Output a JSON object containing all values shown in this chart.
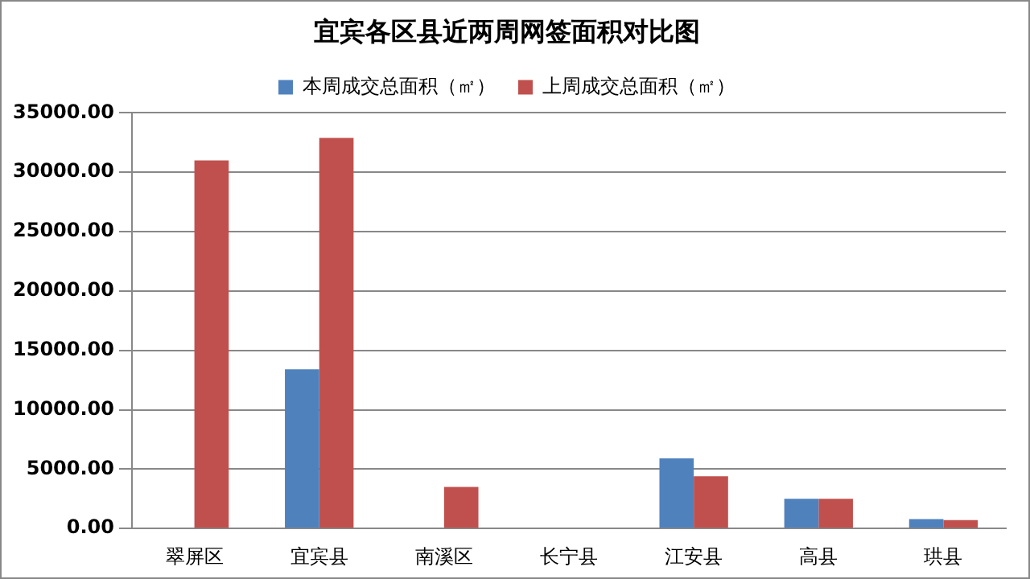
{
  "chart_data": {
    "type": "bar",
    "title": "宜宾各区县近两周网签面积对比图",
    "categories": [
      "翠屏区",
      "宜宾县",
      "南溪区",
      "长宁县",
      "江安县",
      "高县",
      "珙县"
    ],
    "series": [
      {
        "name": "本周成交总面积（㎡）",
        "color": "#4f81bd",
        "values": [
          0,
          13400,
          0,
          0,
          5900,
          2500,
          800
        ]
      },
      {
        "name": "上周成交总面积（㎡）",
        "color": "#c0504d",
        "values": [
          31000,
          32900,
          3500,
          0,
          4400,
          2500,
          700
        ]
      }
    ],
    "ylim": [
      0,
      35000
    ],
    "yticks": [
      {
        "value": 0,
        "label": "0.00"
      },
      {
        "value": 5000,
        "label": "5000.00"
      },
      {
        "value": 10000,
        "label": "10000.00"
      },
      {
        "value": 15000,
        "label": "15000.00"
      },
      {
        "value": 20000,
        "label": "20000.00"
      },
      {
        "value": 25000,
        "label": "25000.00"
      },
      {
        "value": 30000,
        "label": "30000.00"
      },
      {
        "value": 35000,
        "label": "35000.00"
      }
    ],
    "grid": "y",
    "legend": "top"
  }
}
